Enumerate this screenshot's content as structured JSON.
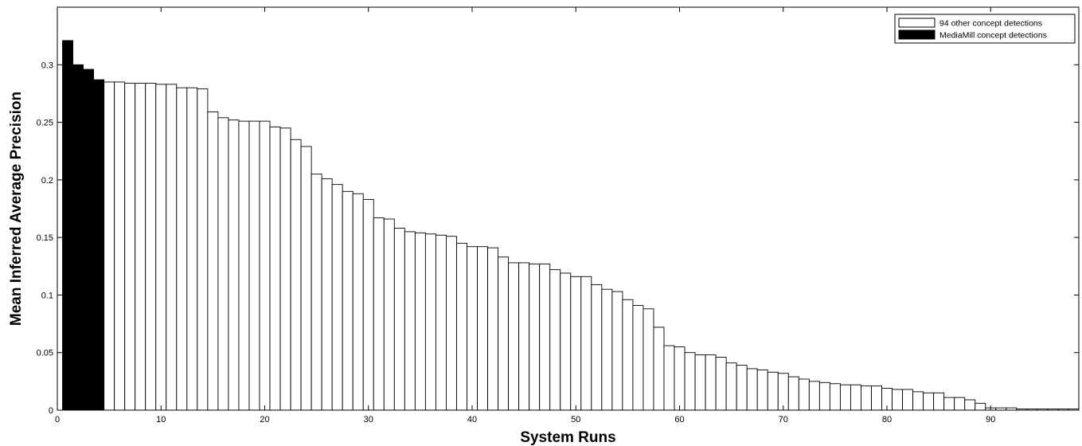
{
  "chart_data": {
    "type": "bar",
    "title": "",
    "xlabel": "System Runs",
    "ylabel": "Mean Inferred Average Precision",
    "xlim": [
      0,
      98.5
    ],
    "ylim": [
      0,
      0.35
    ],
    "xticks": [
      0,
      10,
      20,
      30,
      40,
      50,
      60,
      70,
      80,
      90
    ],
    "yticks": [
      0,
      0.05,
      0.1,
      0.15,
      0.2,
      0.25,
      0.3
    ],
    "ytick_labels": [
      "0",
      "0.05",
      "0.1",
      "0.15",
      "0.2",
      "0.25",
      "0.3"
    ],
    "grid": false,
    "legend_position": "top-right",
    "series": [
      {
        "name": "94 other concept detections",
        "color": "#ffffff",
        "x": [
          5,
          6,
          7,
          8,
          9,
          10,
          11,
          12,
          13,
          14,
          15,
          16,
          17,
          18,
          19,
          20,
          21,
          22,
          23,
          24,
          25,
          26,
          27,
          28,
          29,
          30,
          31,
          32,
          33,
          34,
          35,
          36,
          37,
          38,
          39,
          40,
          41,
          42,
          43,
          44,
          45,
          46,
          47,
          48,
          49,
          50,
          51,
          52,
          53,
          54,
          55,
          56,
          57,
          58,
          59,
          60,
          61,
          62,
          63,
          64,
          65,
          66,
          67,
          68,
          69,
          70,
          71,
          72,
          73,
          74,
          75,
          76,
          77,
          78,
          79,
          80,
          81,
          82,
          83,
          84,
          85,
          86,
          87,
          88,
          89,
          90,
          91,
          92,
          93,
          94,
          95,
          96,
          97,
          98
        ],
        "values": [
          0.285,
          0.285,
          0.284,
          0.284,
          0.284,
          0.283,
          0.283,
          0.28,
          0.28,
          0.279,
          0.259,
          0.254,
          0.252,
          0.251,
          0.251,
          0.251,
          0.246,
          0.245,
          0.235,
          0.229,
          0.205,
          0.201,
          0.196,
          0.19,
          0.188,
          0.183,
          0.167,
          0.166,
          0.158,
          0.155,
          0.154,
          0.153,
          0.152,
          0.151,
          0.145,
          0.142,
          0.142,
          0.141,
          0.133,
          0.128,
          0.128,
          0.127,
          0.127,
          0.122,
          0.119,
          0.116,
          0.116,
          0.109,
          0.105,
          0.103,
          0.096,
          0.091,
          0.088,
          0.072,
          0.056,
          0.055,
          0.05,
          0.048,
          0.048,
          0.046,
          0.041,
          0.039,
          0.036,
          0.035,
          0.033,
          0.032,
          0.029,
          0.027,
          0.025,
          0.024,
          0.023,
          0.022,
          0.022,
          0.021,
          0.021,
          0.019,
          0.018,
          0.018,
          0.016,
          0.015,
          0.015,
          0.011,
          0.011,
          0.009,
          0.006,
          0.002,
          0.002,
          0.002,
          0.001,
          0.001,
          0.001,
          0.001,
          0.001,
          0.001
        ]
      },
      {
        "name": "MediaMill concept detections",
        "color": "#000000",
        "x": [
          1,
          2,
          3,
          4
        ],
        "values": [
          0.321,
          0.3,
          0.296,
          0.287
        ]
      }
    ]
  }
}
